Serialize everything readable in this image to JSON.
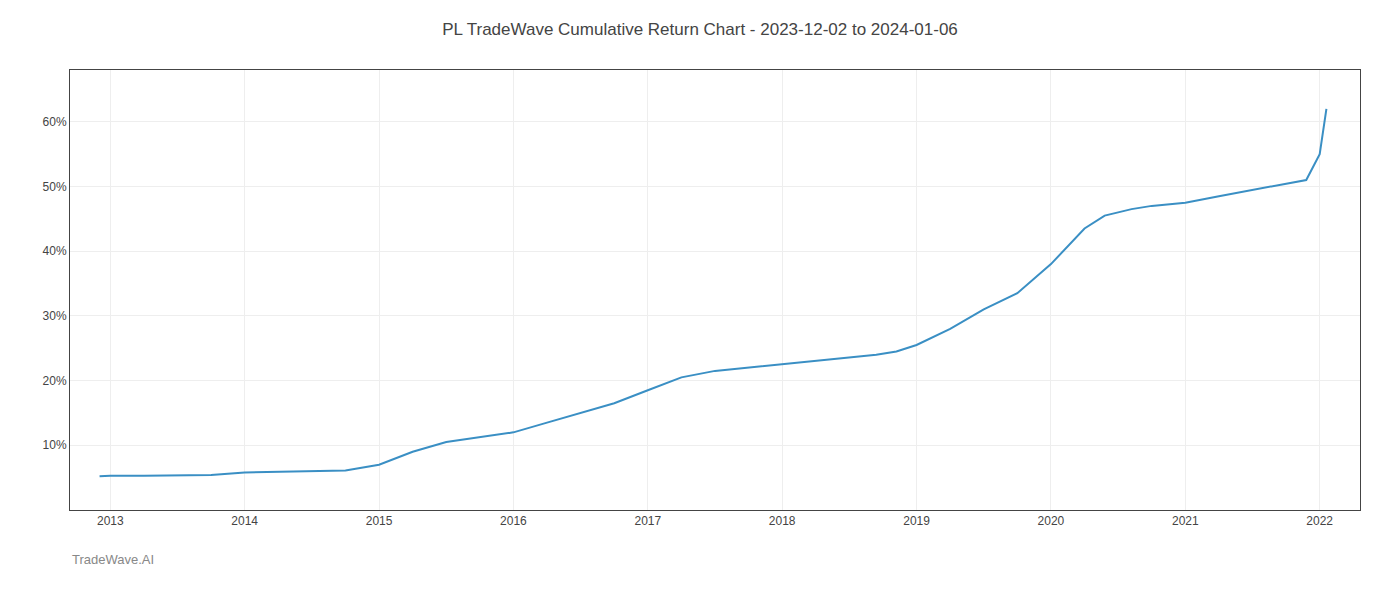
{
  "chart_data": {
    "type": "line",
    "title": "PL TradeWave Cumulative Return Chart - 2023-12-02 to 2024-01-06",
    "annotations": [
      "TradeWave.AI"
    ],
    "x": [
      2012.92,
      2013.0,
      2013.25,
      2013.5,
      2013.75,
      2014.0,
      2014.25,
      2014.5,
      2014.75,
      2015.0,
      2015.25,
      2015.5,
      2015.75,
      2016.0,
      2016.25,
      2016.5,
      2016.75,
      2017.0,
      2017.25,
      2017.5,
      2017.75,
      2018.0,
      2018.1,
      2018.25,
      2018.5,
      2018.7,
      2018.85,
      2019.0,
      2019.25,
      2019.5,
      2019.75,
      2020.0,
      2020.25,
      2020.4,
      2020.5,
      2020.6,
      2020.75,
      2021.0,
      2021.25,
      2021.5,
      2021.75,
      2021.9,
      2022.0,
      2022.05
    ],
    "values": [
      5.2,
      5.3,
      5.3,
      5.4,
      5.4,
      5.8,
      5.9,
      6.0,
      6.1,
      7.0,
      9.0,
      10.5,
      11.2,
      12.0,
      13.5,
      15.0,
      16.5,
      18.5,
      20.5,
      21.5,
      22.0,
      22.5,
      22.7,
      23.0,
      23.5,
      24.0,
      24.5,
      25.5,
      28.0,
      31.0,
      33.5,
      38.0,
      43.5,
      45.5,
      46.0,
      46.5,
      47.0,
      47.5,
      48.5,
      49.5,
      50.5,
      51.0,
      55.0,
      62.0
    ],
    "color": "#3a8fc4",
    "xlim": [
      2012.7,
      2022.3
    ],
    "ylim": [
      0,
      68
    ],
    "xticks": [
      2013,
      2014,
      2015,
      2016,
      2017,
      2018,
      2019,
      2020,
      2021,
      2022
    ],
    "yticks": [
      {
        "value": 10,
        "label": "10%"
      },
      {
        "value": 20,
        "label": "20%"
      },
      {
        "value": 30,
        "label": "30%"
      },
      {
        "value": 40,
        "label": "40%"
      },
      {
        "value": 50,
        "label": "50%"
      },
      {
        "value": 60,
        "label": "60%"
      }
    ],
    "grid": true
  }
}
